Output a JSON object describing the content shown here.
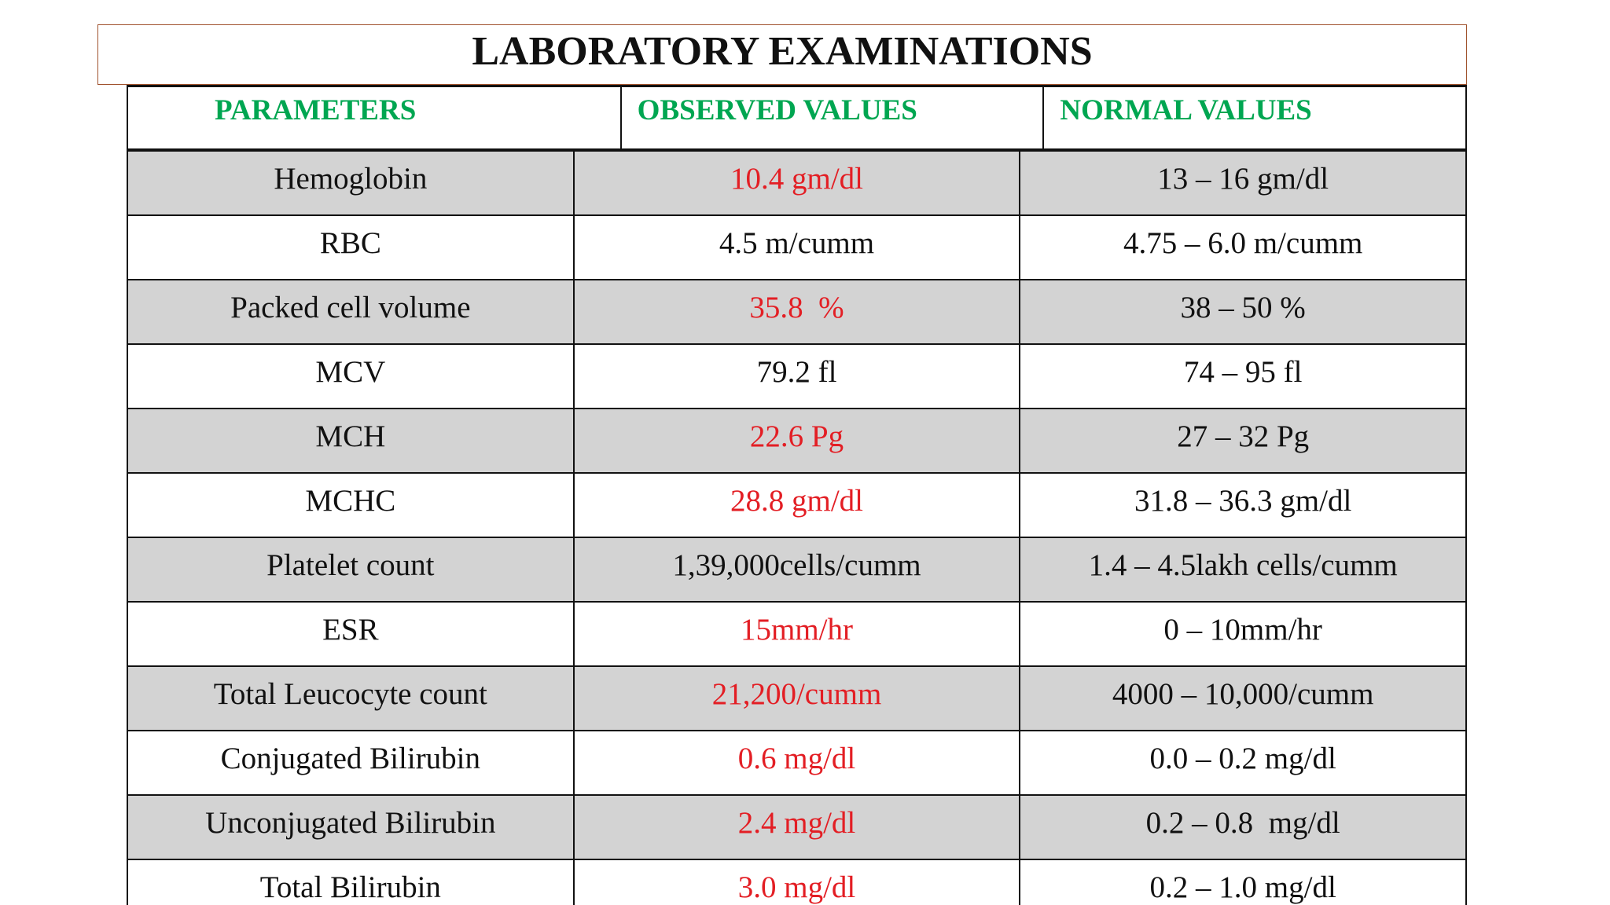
{
  "title": "LABORATORY EXAMINATIONS",
  "table": {
    "header_color": "#00a651",
    "headers": [
      "PARAMETERS",
      "OBSERVED VALUES",
      "NORMAL VALUES"
    ],
    "rows": [
      {
        "cells": [
          "Hemoglobin",
          "10.4 gm/dl",
          "13 – 16 gm/dl"
        ],
        "observed_color": "#e31e24"
      },
      {
        "cells": [
          "RBC",
          "4.5 m/cumm",
          "4.75 – 6.0 m/cumm"
        ],
        "observed_color": "#111111"
      },
      {
        "cells": [
          "Packed cell volume",
          "35.8  %",
          "38 – 50 %"
        ],
        "observed_color": "#e31e24"
      },
      {
        "cells": [
          "MCV",
          "79.2 fl",
          "74 – 95 fl"
        ],
        "observed_color": "#111111"
      },
      {
        "cells": [
          "MCH",
          "22.6 Pg",
          "27 – 32 Pg"
        ],
        "observed_color": "#e31e24"
      },
      {
        "cells": [
          "MCHC",
          "28.8 gm/dl",
          "31.8 – 36.3 gm/dl"
        ],
        "observed_color": "#e31e24"
      },
      {
        "cells": [
          "Platelet count",
          "1,39,000cells/cumm",
          "1.4 – 4.5lakh cells/cumm"
        ],
        "observed_color": "#111111"
      },
      {
        "cells": [
          "ESR",
          "15mm/hr",
          "0 – 10mm/hr"
        ],
        "observed_color": "#e31e24"
      },
      {
        "cells": [
          "Total Leucocyte count",
          "21,200/cumm",
          "4000 – 10,000/cumm"
        ],
        "observed_color": "#e31e24"
      },
      {
        "cells": [
          "Conjugated Bilirubin",
          "0.6 mg/dl",
          "0.0 – 0.2 mg/dl"
        ],
        "observed_color": "#e31e24"
      },
      {
        "cells": [
          "Unconjugated Bilirubin",
          "2.4 mg/dl",
          "0.2 – 0.8  mg/dl"
        ],
        "observed_color": "#e31e24"
      },
      {
        "cells": [
          "Total Bilirubin",
          "3.0 mg/dl",
          "0.2 – 1.0 mg/dl"
        ],
        "observed_color": "#e31e24"
      }
    ]
  }
}
